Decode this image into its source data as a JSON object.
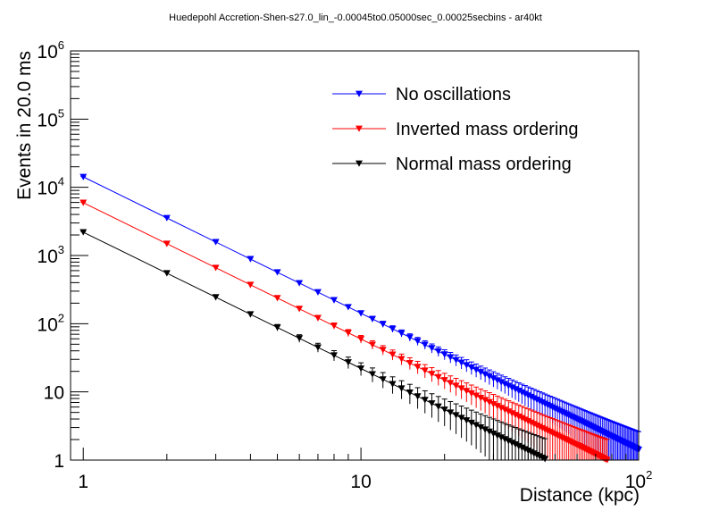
{
  "chart_data": {
    "type": "scatter",
    "title": "Huedepohl Accretion-Shen-s27.0_lin_-0.00045to0.05000sec_0.00025secbins - ar40kt",
    "xlabel": "Distance (kpc)",
    "ylabel": "Events in 20.0 ms",
    "x_scale": "log",
    "y_scale": "log",
    "xlim": [
      0.9,
      100
    ],
    "ylim": [
      1,
      1000000
    ],
    "x_ticks": [
      {
        "value": 1,
        "label": "1"
      },
      {
        "value": 10,
        "label": "10"
      },
      {
        "value": 100,
        "base": "10",
        "exp": "2"
      }
    ],
    "y_ticks": [
      {
        "value": 1,
        "label": "1"
      },
      {
        "value": 10,
        "label": "10"
      },
      {
        "value": 100,
        "base": "10",
        "exp": "2"
      },
      {
        "value": 1000,
        "base": "10",
        "exp": "3"
      },
      {
        "value": 10000,
        "base": "10",
        "exp": "4"
      },
      {
        "value": 100000,
        "base": "10",
        "exp": "5"
      },
      {
        "value": 1000000,
        "base": "10",
        "exp": "6"
      }
    ],
    "legend_position": "top-right",
    "marker": "triangle-down",
    "error_bars": "sqrt(N)",
    "distance_step": 1,
    "series": [
      {
        "name": "No oscillations",
        "color": "#0000ff",
        "value_at_1kpc": 14200,
        "falloff": "1/d^2",
        "x_max": 100
      },
      {
        "name": "Inverted mass ordering",
        "color": "#ff0000",
        "value_at_1kpc": 5950,
        "falloff": "1/d^2",
        "x_max": 77
      },
      {
        "name": "Normal mass ordering",
        "color": "#000000",
        "value_at_1kpc": 2200,
        "falloff": "1/d^2",
        "x_max": 47
      }
    ]
  }
}
